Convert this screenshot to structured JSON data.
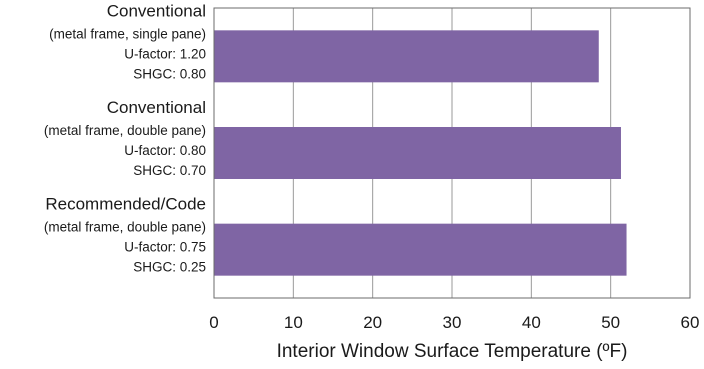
{
  "chart_data": {
    "type": "bar",
    "orientation": "horizontal",
    "title": "",
    "xlabel": "Interior Window Surface Temperature (ºF)",
    "ylabel": "",
    "xlim": [
      0,
      60
    ],
    "xticks": [
      "0",
      "10",
      "20",
      "30",
      "40",
      "50",
      "60"
    ],
    "grid": true,
    "legend": "none",
    "bar_color": "#7f65a4",
    "categories": [
      {
        "name": "Conventional",
        "details": [
          "(metal frame, single pane)",
          "U-factor: 1.20",
          "SHGC: 0.80"
        ],
        "value": 48.5
      },
      {
        "name": "Conventional",
        "details": [
          "(metal frame, double pane)",
          "U-factor: 0.80",
          "SHGC: 0.70"
        ],
        "value": 51.3
      },
      {
        "name": "Recommended/Code",
        "details": [
          "(metal frame, double pane)",
          "U-factor: 0.75",
          "SHGC: 0.25"
        ],
        "value": 52
      }
    ]
  }
}
